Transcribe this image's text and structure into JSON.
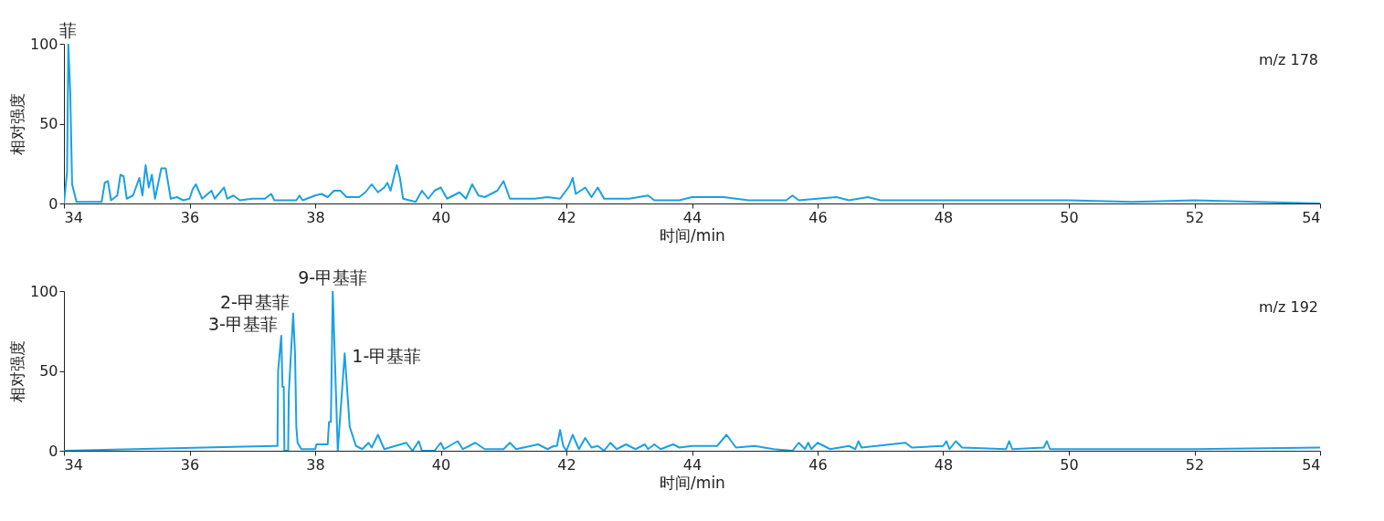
{
  "chart_data": [
    {
      "type": "line",
      "xlabel": "时间/min",
      "ylabel": "相对强度",
      "xlim": [
        34,
        54
      ],
      "ylim": [
        0,
        100
      ],
      "xticks": [
        34,
        36,
        38,
        40,
        42,
        44,
        46,
        48,
        50,
        52,
        54
      ],
      "yticks": [
        0,
        50,
        100
      ],
      "grid": false,
      "annotations": [
        {
          "text": "菲",
          "x": 34.07,
          "y": 100
        },
        "m/z 178"
      ],
      "x": [
        34.0,
        34.05,
        34.07,
        34.1,
        34.13,
        34.2,
        34.6,
        34.65,
        34.7,
        34.75,
        34.85,
        34.9,
        34.95,
        35.0,
        35.1,
        35.2,
        35.25,
        35.3,
        35.35,
        35.4,
        35.45,
        35.55,
        35.62,
        35.7,
        35.8,
        35.9,
        36.0,
        36.05,
        36.1,
        36.2,
        36.35,
        36.4,
        36.55,
        36.6,
        36.7,
        36.8,
        37.0,
        37.2,
        37.3,
        37.35,
        37.7,
        37.75,
        37.8,
        38.0,
        38.1,
        38.2,
        38.3,
        38.4,
        38.5,
        38.7,
        38.8,
        38.9,
        39.0,
        39.1,
        39.15,
        39.2,
        39.3,
        39.35,
        39.4,
        39.6,
        39.7,
        39.8,
        39.9,
        40.0,
        40.1,
        40.3,
        40.4,
        40.5,
        40.6,
        40.7,
        40.9,
        41.0,
        41.1,
        41.5,
        41.7,
        41.9,
        42.05,
        42.1,
        42.15,
        42.3,
        42.4,
        42.5,
        42.6,
        43.0,
        43.3,
        43.4,
        43.8,
        44.0,
        44.5,
        44.9,
        45.5,
        45.6,
        45.7,
        46.0,
        46.3,
        46.5,
        46.8,
        47.0,
        50.0,
        51.0,
        52.0,
        53.0,
        54.0
      ],
      "series": [
        {
          "color": "#1ba1e2",
          "values": [
            0,
            20,
            100,
            70,
            12,
            1,
            1,
            13,
            14,
            2,
            5,
            18,
            17,
            3,
            5,
            16,
            5,
            24,
            10,
            18,
            3,
            22,
            22,
            3,
            4,
            2,
            3,
            9,
            12,
            3,
            8,
            3,
            10,
            3,
            5,
            2,
            3,
            3,
            6,
            2,
            2,
            5,
            2,
            5,
            6,
            4,
            8,
            8,
            4,
            4,
            7,
            12,
            7,
            10,
            13,
            8,
            24,
            16,
            3,
            1,
            8,
            3,
            8,
            10,
            3,
            7,
            3,
            12,
            5,
            4,
            8,
            14,
            3,
            3,
            4,
            3,
            11,
            16,
            6,
            10,
            4,
            10,
            3,
            3,
            5,
            2,
            2,
            4,
            4,
            2,
            2,
            5,
            2,
            3,
            4,
            2,
            4,
            2,
            2,
            1,
            2,
            1,
            0
          ]
        }
      ]
    },
    {
      "type": "line",
      "xlabel": "时间/min",
      "ylabel": "相对强度",
      "xlim": [
        34,
        54
      ],
      "ylim": [
        0,
        100
      ],
      "xticks": [
        34,
        36,
        38,
        40,
        42,
        44,
        46,
        48,
        50,
        52,
        54
      ],
      "yticks": [
        0,
        50,
        100
      ],
      "grid": false,
      "annotations": [
        {
          "text": "3-甲基菲",
          "x": 37.46,
          "y": 72
        },
        {
          "text": "2-甲基菲",
          "x": 37.65,
          "y": 86
        },
        {
          "text": "9-甲基菲",
          "x": 38.28,
          "y": 100
        },
        {
          "text": "1-甲基菲",
          "x": 38.47,
          "y": 61
        },
        "m/z 192"
      ],
      "x": [
        34.0,
        37.37,
        37.4,
        37.41,
        37.46,
        37.48,
        37.5,
        37.51,
        37.57,
        37.58,
        37.65,
        37.68,
        37.7,
        37.72,
        37.78,
        38.0,
        38.02,
        38.2,
        38.22,
        38.25,
        38.28,
        38.36,
        38.47,
        38.55,
        38.65,
        38.75,
        38.85,
        38.9,
        39.0,
        39.1,
        39.45,
        39.55,
        39.65,
        39.7,
        39.9,
        40.0,
        40.05,
        40.27,
        40.35,
        40.55,
        40.7,
        41.0,
        41.1,
        41.2,
        41.55,
        41.7,
        41.8,
        41.85,
        41.9,
        41.95,
        42.0,
        42.1,
        42.2,
        42.3,
        42.4,
        42.5,
        42.6,
        42.7,
        42.8,
        42.95,
        43.1,
        43.25,
        43.3,
        43.4,
        43.5,
        43.7,
        43.8,
        44.0,
        44.4,
        44.55,
        44.7,
        45.0,
        45.3,
        45.6,
        45.7,
        45.8,
        45.85,
        45.9,
        46.0,
        46.2,
        46.5,
        46.6,
        46.65,
        46.7,
        47.4,
        47.5,
        48.0,
        48.05,
        48.1,
        48.2,
        48.3,
        49.0,
        49.05,
        49.1,
        49.6,
        49.65,
        49.7,
        51.0,
        52.0,
        54.0
      ],
      "series": [
        {
          "color": "#1ba1e2",
          "values": [
            0,
            3,
            3,
            50,
            72,
            40,
            40,
            0,
            0,
            36,
            86,
            60,
            15,
            5,
            1,
            1,
            4,
            4,
            18,
            18,
            100,
            0,
            61,
            15,
            3,
            1,
            5,
            2,
            10,
            1,
            5,
            0,
            6,
            0,
            0,
            5,
            1,
            6,
            1,
            5,
            1,
            1,
            5,
            1,
            4,
            1,
            3,
            3,
            13,
            3,
            0,
            10,
            1,
            8,
            2,
            3,
            0,
            5,
            1,
            4,
            1,
            4,
            1,
            4,
            1,
            4,
            2,
            3,
            3,
            10,
            2,
            3,
            1,
            0,
            5,
            1,
            5,
            1,
            5,
            1,
            3,
            1,
            6,
            2,
            5,
            2,
            3,
            6,
            1,
            6,
            2,
            1,
            6,
            1,
            2,
            6,
            1,
            1,
            1,
            2
          ]
        }
      ]
    }
  ]
}
